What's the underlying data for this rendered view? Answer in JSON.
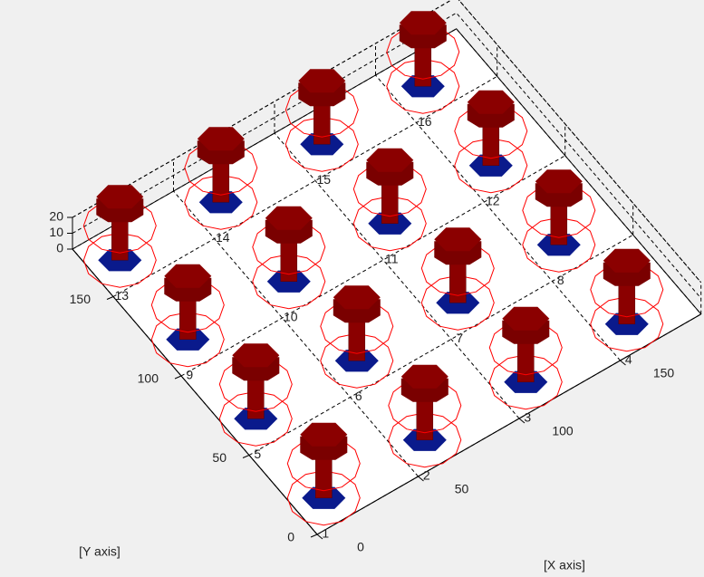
{
  "chart_data": {
    "type": "scatter3d",
    "xlabel": "[X axis]",
    "ylabel": "[Y axis]",
    "xlim": [
      0,
      190
    ],
    "ylim": [
      0,
      180
    ],
    "zlim": [
      0,
      20
    ],
    "xticks": [
      0,
      50,
      100,
      150
    ],
    "yticks": [
      0,
      50,
      100,
      150
    ],
    "zticks": [
      0,
      10,
      20
    ],
    "grid": true,
    "x": [
      10,
      60,
      110,
      160,
      10,
      60,
      110,
      160,
      10,
      60,
      110,
      160,
      10,
      60,
      110,
      160
    ],
    "y": [
      10,
      10,
      10,
      10,
      60,
      60,
      60,
      60,
      110,
      110,
      110,
      110,
      160,
      160,
      160,
      160
    ],
    "labels": [
      "1",
      "2",
      "3",
      "4",
      "5",
      "6",
      "7",
      "8",
      "9",
      "10",
      "11",
      "12",
      "13",
      "14",
      "15",
      "16"
    ],
    "head_color": "#8b0000",
    "nut_color": "#0a1a8c",
    "ring_color": "#ff0000"
  }
}
